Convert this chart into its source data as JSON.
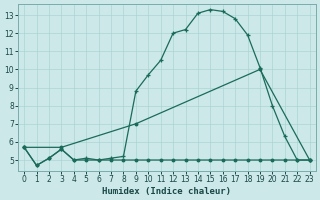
{
  "bg_color": "#cce8e8",
  "grid_color": "#aad4d4",
  "line_color": "#1a6b5a",
  "xlabel": "Humidex (Indice chaleur)",
  "xlim": [
    -0.5,
    23.5
  ],
  "ylim": [
    4.4,
    13.6
  ],
  "xticks": [
    0,
    1,
    2,
    3,
    4,
    5,
    6,
    7,
    8,
    9,
    10,
    11,
    12,
    13,
    14,
    15,
    16,
    17,
    18,
    19,
    20,
    21,
    22,
    23
  ],
  "yticks": [
    5,
    6,
    7,
    8,
    9,
    10,
    11,
    12,
    13
  ],
  "curve_x": [
    0,
    1,
    2,
    3,
    4,
    5,
    6,
    7,
    8,
    9,
    10,
    11,
    12,
    13,
    14,
    15,
    16,
    17,
    18,
    19,
    20,
    21,
    22,
    23
  ],
  "curve_y": [
    5.7,
    4.7,
    5.1,
    5.6,
    5.0,
    5.1,
    5.0,
    5.1,
    5.2,
    8.8,
    9.7,
    10.5,
    12.0,
    12.2,
    13.1,
    13.3,
    13.2,
    12.8,
    11.9,
    10.1,
    8.0,
    6.3,
    5.0,
    5.0
  ],
  "diag_x": [
    0,
    3,
    9,
    19,
    23
  ],
  "diag_y": [
    5.7,
    5.7,
    7.0,
    10.0,
    5.0
  ],
  "flat_x": [
    0,
    1,
    2,
    3,
    4,
    5,
    6,
    7,
    8,
    9,
    10,
    11,
    12,
    13,
    14,
    15,
    16,
    17,
    18,
    19,
    20,
    21,
    22,
    23
  ],
  "flat_y": [
    5.7,
    4.7,
    5.1,
    5.6,
    5.0,
    5.0,
    5.0,
    5.0,
    5.0,
    5.0,
    5.0,
    5.0,
    5.0,
    5.0,
    5.0,
    5.0,
    5.0,
    5.0,
    5.0,
    5.0,
    5.0,
    5.0,
    5.0,
    5.0
  ]
}
